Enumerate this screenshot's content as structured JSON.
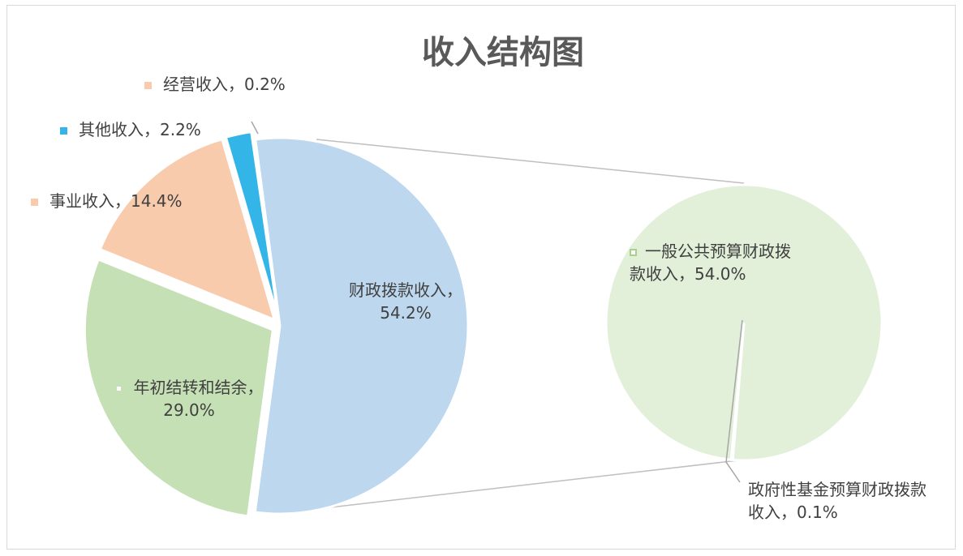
{
  "chart_data": {
    "type": "pie",
    "title": "收入结构图",
    "categories": [
      "财政拨款收入，",
      "年初结转和结余，",
      "事业收入，",
      "其他收入，",
      "经营收入，"
    ],
    "values": [
      54.2,
      29.0,
      14.4,
      2.2,
      0.2
    ],
    "value_labels": [
      "54.2%",
      "29.0%",
      "14.4%",
      "2.2%",
      "0.2%"
    ],
    "colors": [
      "#bdd7ee",
      "#c5e0b4",
      "#f8cbad",
      "#33b5e8",
      "#f8cbad"
    ],
    "secondary": {
      "categories": [
        "一般公共预算财政拨款收入，",
        "政府性基金预算财政拨款收入，"
      ],
      "values": [
        54.0,
        0.1
      ],
      "value_labels": [
        "54.0%",
        "0.1%"
      ],
      "color": "#e2efd9"
    }
  }
}
